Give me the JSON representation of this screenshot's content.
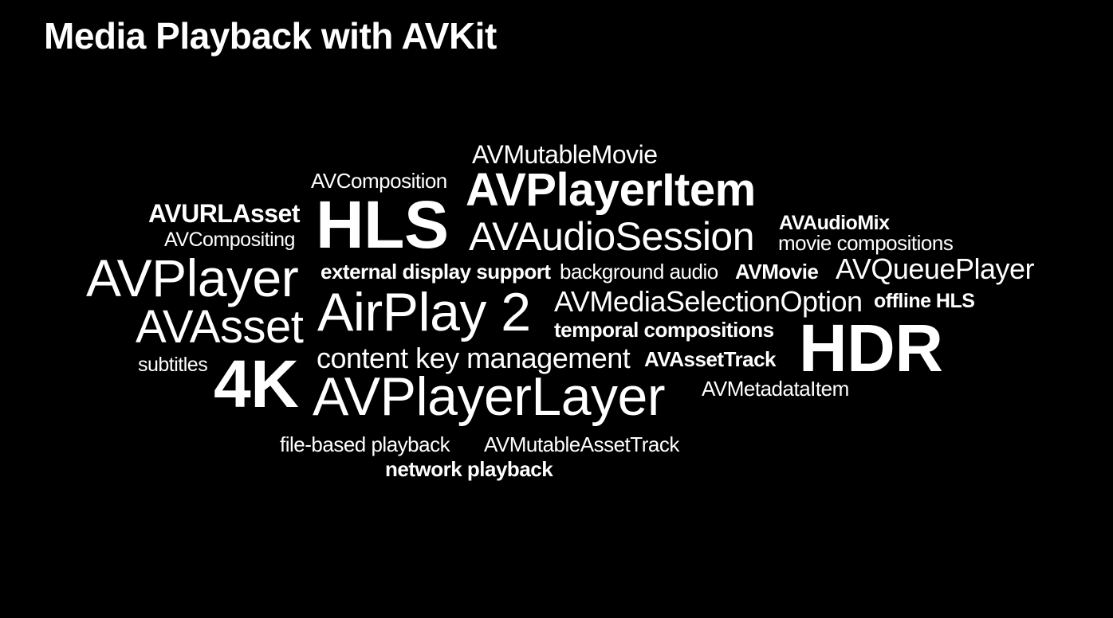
{
  "slide": {
    "title": "Media Playback with AVKit",
    "background_color": "#000000",
    "text_color": "#ffffff"
  },
  "word_cloud": {
    "words": [
      "AVMutableMovie",
      "AVComposition",
      "AVPlayerItem",
      "AVURLAsset",
      "HLS",
      "AVAudioSession",
      "AVAudioMix",
      "movie compositions",
      "AVCompositing",
      "AVPlayer",
      "external display support",
      "background audio",
      "AVMovie",
      "AVQueuePlayer",
      "AirPlay 2",
      "AVMediaSelectionOption",
      "offline HLS",
      "AVAsset",
      "temporal compositions",
      "HDR",
      "content key management",
      "AVAssetTrack",
      "subtitles",
      "4K",
      "AVPlayerLayer",
      "AVMetadataItem",
      "file-based playback",
      "AVMutableAssetTrack",
      "network playback"
    ]
  }
}
